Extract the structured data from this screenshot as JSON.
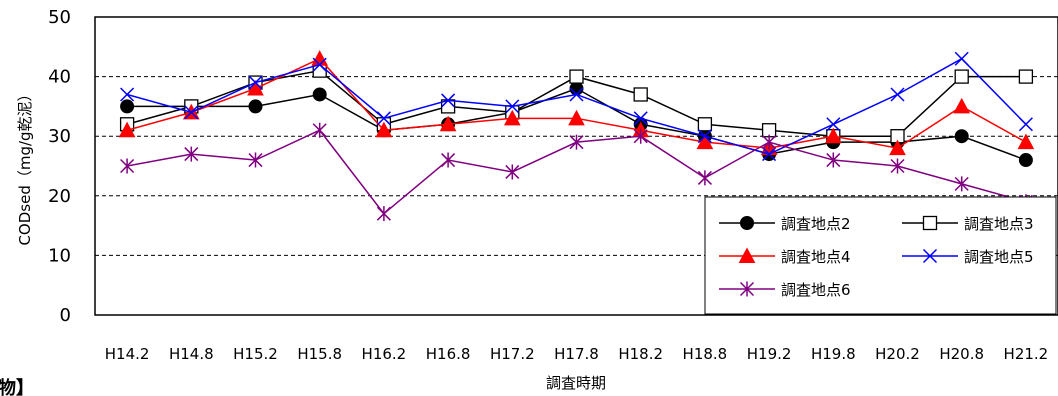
{
  "corner_text": "物】",
  "chart_data": {
    "type": "line",
    "xlabel": "調査時期",
    "ylabel": "CODsed（mg/g乾泥）",
    "categories": [
      "H14.2",
      "H14.8",
      "H15.2",
      "H15.8",
      "H16.2",
      "H16.8",
      "H17.2",
      "H17.8",
      "H18.2",
      "H18.8",
      "H19.2",
      "H19.8",
      "H20.2",
      "H20.8",
      "H21.2"
    ],
    "ylim": [
      0,
      50
    ],
    "yticks": [
      0,
      10,
      20,
      30,
      40,
      50
    ],
    "grid": "horizontal-dashed",
    "legend_position": "bottom-right",
    "series": [
      {
        "name": "調査地点2",
        "color": "#000000",
        "marker": "filled-circle",
        "values": [
          35,
          35,
          35,
          37,
          31,
          32,
          34,
          38,
          32,
          30,
          27,
          29,
          29,
          30,
          26
        ]
      },
      {
        "name": "調査地点3",
        "color": "#000000",
        "marker": "open-square",
        "values": [
          32,
          35,
          39,
          41,
          32,
          35,
          34,
          40,
          37,
          32,
          31,
          30,
          30,
          40,
          40
        ]
      },
      {
        "name": "調査地点4",
        "color": "#ff0000",
        "marker": "filled-triangle",
        "values": [
          31,
          34,
          38,
          43,
          31,
          32,
          33,
          33,
          31,
          29,
          28,
          30,
          28,
          35,
          29
        ]
      },
      {
        "name": "調査地点5",
        "color": "#0000ff",
        "marker": "x",
        "values": [
          37,
          34,
          39,
          42,
          33,
          36,
          35,
          37,
          33,
          30,
          27,
          32,
          37,
          43,
          32
        ]
      },
      {
        "name": "調査地点6",
        "color": "#800080",
        "marker": "star",
        "values": [
          25,
          27,
          26,
          31,
          17,
          26,
          24,
          29,
          30,
          23,
          29,
          26,
          25,
          22,
          19
        ]
      }
    ]
  }
}
